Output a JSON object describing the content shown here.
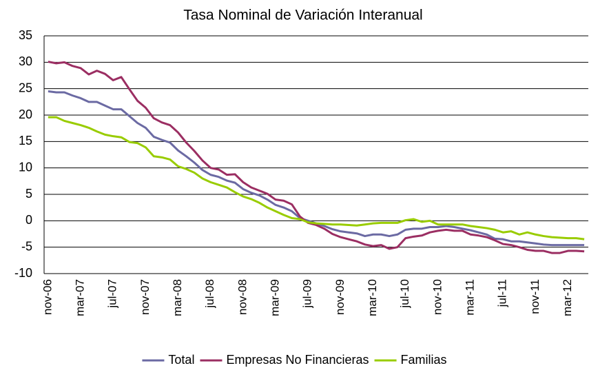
{
  "chart_data": {
    "type": "line",
    "title": "Tasa Nominal de Variación Interanual",
    "categories": [
      "nov-06",
      null,
      null,
      null,
      "mar-07",
      null,
      null,
      null,
      "jul-07",
      null,
      null,
      null,
      "nov-07",
      null,
      null,
      null,
      "mar-08",
      null,
      null,
      null,
      "jul-08",
      null,
      null,
      null,
      "nov-08",
      null,
      null,
      null,
      "mar-09",
      null,
      null,
      null,
      "jul-09",
      null,
      null,
      null,
      "nov-09",
      null,
      null,
      null,
      "mar-10",
      null,
      null,
      null,
      "jul-10",
      null,
      null,
      null,
      "nov-10",
      null,
      null,
      null,
      "mar-11",
      null,
      null,
      null,
      "jul-11",
      null,
      null,
      null,
      "nov-11",
      null,
      null,
      null,
      "mar-12",
      null,
      null
    ],
    "series": [
      {
        "name": "Total",
        "color": "#6b6aa3",
        "values": [
          24.5,
          24.3,
          24.3,
          23.7,
          23.2,
          22.5,
          22.5,
          21.8,
          21.1,
          21.1,
          19.8,
          18.5,
          17.6,
          15.9,
          15.3,
          14.8,
          13.3,
          12.2,
          11.0,
          9.6,
          8.7,
          8.3,
          7.6,
          7.2,
          6.0,
          5.3,
          4.8,
          4.0,
          3.0,
          2.5,
          1.8,
          0.5,
          0.0,
          -0.5,
          -1.0,
          -1.6,
          -2.0,
          -2.2,
          -2.4,
          -2.9,
          -2.6,
          -2.6,
          -2.9,
          -2.6,
          -1.7,
          -1.5,
          -1.5,
          -1.2,
          -1.2,
          -1.0,
          -1.2,
          -1.5,
          -1.8,
          -2.2,
          -2.6,
          -3.4,
          -3.5,
          -3.9,
          -3.9,
          -4.1,
          -4.3,
          -4.5,
          -4.6,
          -4.6,
          -4.6,
          -4.6,
          -4.6
        ]
      },
      {
        "name": "Empresas No Financieras",
        "color": "#9b2e62",
        "values": [
          30.1,
          29.8,
          30.0,
          29.3,
          28.9,
          27.7,
          28.4,
          27.8,
          26.6,
          27.2,
          24.9,
          22.7,
          21.4,
          19.4,
          18.6,
          18.1,
          16.7,
          14.8,
          13.2,
          11.4,
          10.0,
          9.7,
          8.7,
          8.8,
          7.3,
          6.3,
          5.7,
          5.1,
          4.0,
          3.8,
          3.1,
          0.8,
          -0.4,
          -0.8,
          -1.5,
          -2.5,
          -3.1,
          -3.5,
          -3.9,
          -4.5,
          -4.8,
          -4.6,
          -5.3,
          -5.0,
          -3.3,
          -3.0,
          -2.8,
          -2.2,
          -1.9,
          -1.7,
          -1.9,
          -1.9,
          -2.6,
          -2.8,
          -3.1,
          -3.7,
          -4.4,
          -4.6,
          -5.0,
          -5.5,
          -5.7,
          -5.7,
          -6.1,
          -6.1,
          -5.7,
          -5.7,
          -5.8
        ]
      },
      {
        "name": "Familias",
        "color": "#99cc00",
        "values": [
          19.6,
          19.6,
          18.9,
          18.5,
          18.1,
          17.6,
          16.9,
          16.3,
          16.0,
          15.8,
          14.9,
          14.7,
          13.9,
          12.2,
          12.0,
          11.6,
          10.3,
          9.8,
          9.1,
          8.0,
          7.3,
          6.8,
          6.3,
          5.4,
          4.6,
          4.1,
          3.4,
          2.5,
          1.8,
          1.1,
          0.5,
          0.3,
          -0.3,
          -0.5,
          -0.6,
          -0.7,
          -0.7,
          -0.8,
          -0.9,
          -0.7,
          -0.5,
          -0.4,
          -0.4,
          -0.4,
          0.1,
          0.3,
          -0.2,
          0.0,
          -0.7,
          -0.7,
          -0.7,
          -0.7,
          -1.0,
          -1.2,
          -1.4,
          -1.7,
          -2.2,
          -2.0,
          -2.6,
          -2.2,
          -2.6,
          -2.9,
          -3.1,
          -3.2,
          -3.3,
          -3.3,
          -3.5
        ]
      }
    ],
    "ylim": [
      -10,
      35
    ],
    "yticks": [
      -10,
      -5,
      0,
      5,
      10,
      15,
      20,
      25,
      30,
      35
    ],
    "grid": true,
    "legend": "bottom"
  }
}
